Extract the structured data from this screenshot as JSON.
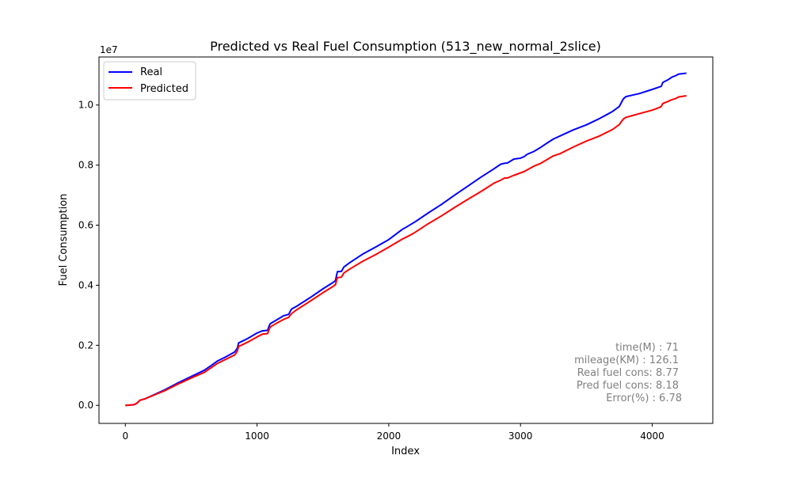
{
  "chart_data": {
    "type": "line",
    "title": "Predicted vs Real Fuel Consumption (513_new_normal_2slice)",
    "xlabel": "Index",
    "ylabel": "Fuel Consumption",
    "y_offset_label": "1e7",
    "xlim": [
      -200,
      4460
    ],
    "ylim": [
      -0.06,
      1.16
    ],
    "y_multiplier": 10000000,
    "xticks": [
      0,
      1000,
      2000,
      3000,
      4000
    ],
    "xtick_labels": [
      "0",
      "1000",
      "2000",
      "3000",
      "4000"
    ],
    "yticks": [
      0.0,
      0.2,
      0.4,
      0.6,
      0.8,
      1.0
    ],
    "ytick_labels": [
      "0.0",
      "0.2",
      "0.4",
      "0.6",
      "0.8",
      "1.0"
    ],
    "grid": false,
    "legend_position": "top-left",
    "series": [
      {
        "name": "Real",
        "color": "#0000ff",
        "x": [
          0,
          60,
          80,
          100,
          110,
          150,
          200,
          300,
          400,
          500,
          600,
          650,
          700,
          760,
          830,
          850,
          860,
          880,
          930,
          1000,
          1040,
          1080,
          1090,
          1100,
          1150,
          1200,
          1240,
          1250,
          1260,
          1300,
          1400,
          1500,
          1580,
          1595,
          1610,
          1640,
          1660,
          1700,
          1800,
          1900,
          2000,
          2100,
          2150,
          2200,
          2300,
          2400,
          2500,
          2600,
          2700,
          2800,
          2850,
          2880,
          2900,
          2950,
          3000,
          3030,
          3050,
          3100,
          3150,
          3200,
          3250,
          3300,
          3400,
          3500,
          3600,
          3700,
          3750,
          3780,
          3800,
          3850,
          3900,
          4000,
          4060,
          4070,
          4080,
          4120,
          4150,
          4180,
          4200,
          4260
        ],
        "y": [
          0.0,
          0.002,
          0.005,
          0.012,
          0.017,
          0.022,
          0.032,
          0.052,
          0.075,
          0.096,
          0.117,
          0.132,
          0.148,
          0.161,
          0.178,
          0.19,
          0.208,
          0.212,
          0.223,
          0.241,
          0.248,
          0.25,
          0.262,
          0.272,
          0.285,
          0.298,
          0.303,
          0.311,
          0.32,
          0.33,
          0.358,
          0.388,
          0.41,
          0.415,
          0.445,
          0.446,
          0.461,
          0.474,
          0.503,
          0.527,
          0.552,
          0.585,
          0.598,
          0.611,
          0.641,
          0.669,
          0.7,
          0.73,
          0.76,
          0.788,
          0.803,
          0.806,
          0.807,
          0.82,
          0.823,
          0.829,
          0.836,
          0.845,
          0.858,
          0.873,
          0.887,
          0.897,
          0.917,
          0.934,
          0.955,
          0.979,
          0.995,
          1.02,
          1.028,
          1.033,
          1.038,
          1.052,
          1.061,
          1.063,
          1.075,
          1.084,
          1.093,
          1.098,
          1.103,
          1.106
        ]
      },
      {
        "name": "Predicted",
        "color": "#ff0000",
        "x": [
          0,
          60,
          80,
          100,
          110,
          150,
          200,
          300,
          400,
          500,
          600,
          650,
          700,
          760,
          830,
          850,
          860,
          880,
          930,
          1000,
          1040,
          1080,
          1090,
          1100,
          1150,
          1200,
          1240,
          1250,
          1260,
          1300,
          1400,
          1500,
          1580,
          1595,
          1610,
          1640,
          1660,
          1700,
          1800,
          1900,
          2000,
          2100,
          2150,
          2200,
          2300,
          2400,
          2500,
          2600,
          2700,
          2800,
          2850,
          2880,
          2900,
          2950,
          3000,
          3030,
          3050,
          3100,
          3150,
          3200,
          3250,
          3300,
          3400,
          3500,
          3600,
          3700,
          3750,
          3780,
          3800,
          3850,
          3900,
          4000,
          4060,
          4070,
          4080,
          4120,
          4150,
          4180,
          4200,
          4260
        ],
        "y": [
          0.0,
          0.002,
          0.005,
          0.012,
          0.017,
          0.022,
          0.031,
          0.049,
          0.071,
          0.091,
          0.11,
          0.125,
          0.14,
          0.153,
          0.168,
          0.18,
          0.197,
          0.2,
          0.211,
          0.228,
          0.237,
          0.239,
          0.251,
          0.261,
          0.274,
          0.286,
          0.293,
          0.299,
          0.305,
          0.318,
          0.346,
          0.375,
          0.397,
          0.402,
          0.425,
          0.427,
          0.441,
          0.453,
          0.479,
          0.502,
          0.527,
          0.553,
          0.564,
          0.576,
          0.605,
          0.631,
          0.659,
          0.686,
          0.712,
          0.74,
          0.75,
          0.757,
          0.757,
          0.766,
          0.774,
          0.779,
          0.784,
          0.796,
          0.805,
          0.818,
          0.831,
          0.838,
          0.86,
          0.88,
          0.897,
          0.919,
          0.935,
          0.953,
          0.959,
          0.965,
          0.971,
          0.983,
          0.993,
          0.996,
          1.005,
          1.012,
          1.018,
          1.022,
          1.027,
          1.031
        ]
      }
    ],
    "annotation_lines": [
      "time(M) : 71",
      "mileage(KM) : 126.1",
      "Real fuel cons: 8.77",
      "Pred fuel cons: 8.18",
      "Error(%) : 6.78"
    ],
    "annotation_color": "#808080"
  }
}
